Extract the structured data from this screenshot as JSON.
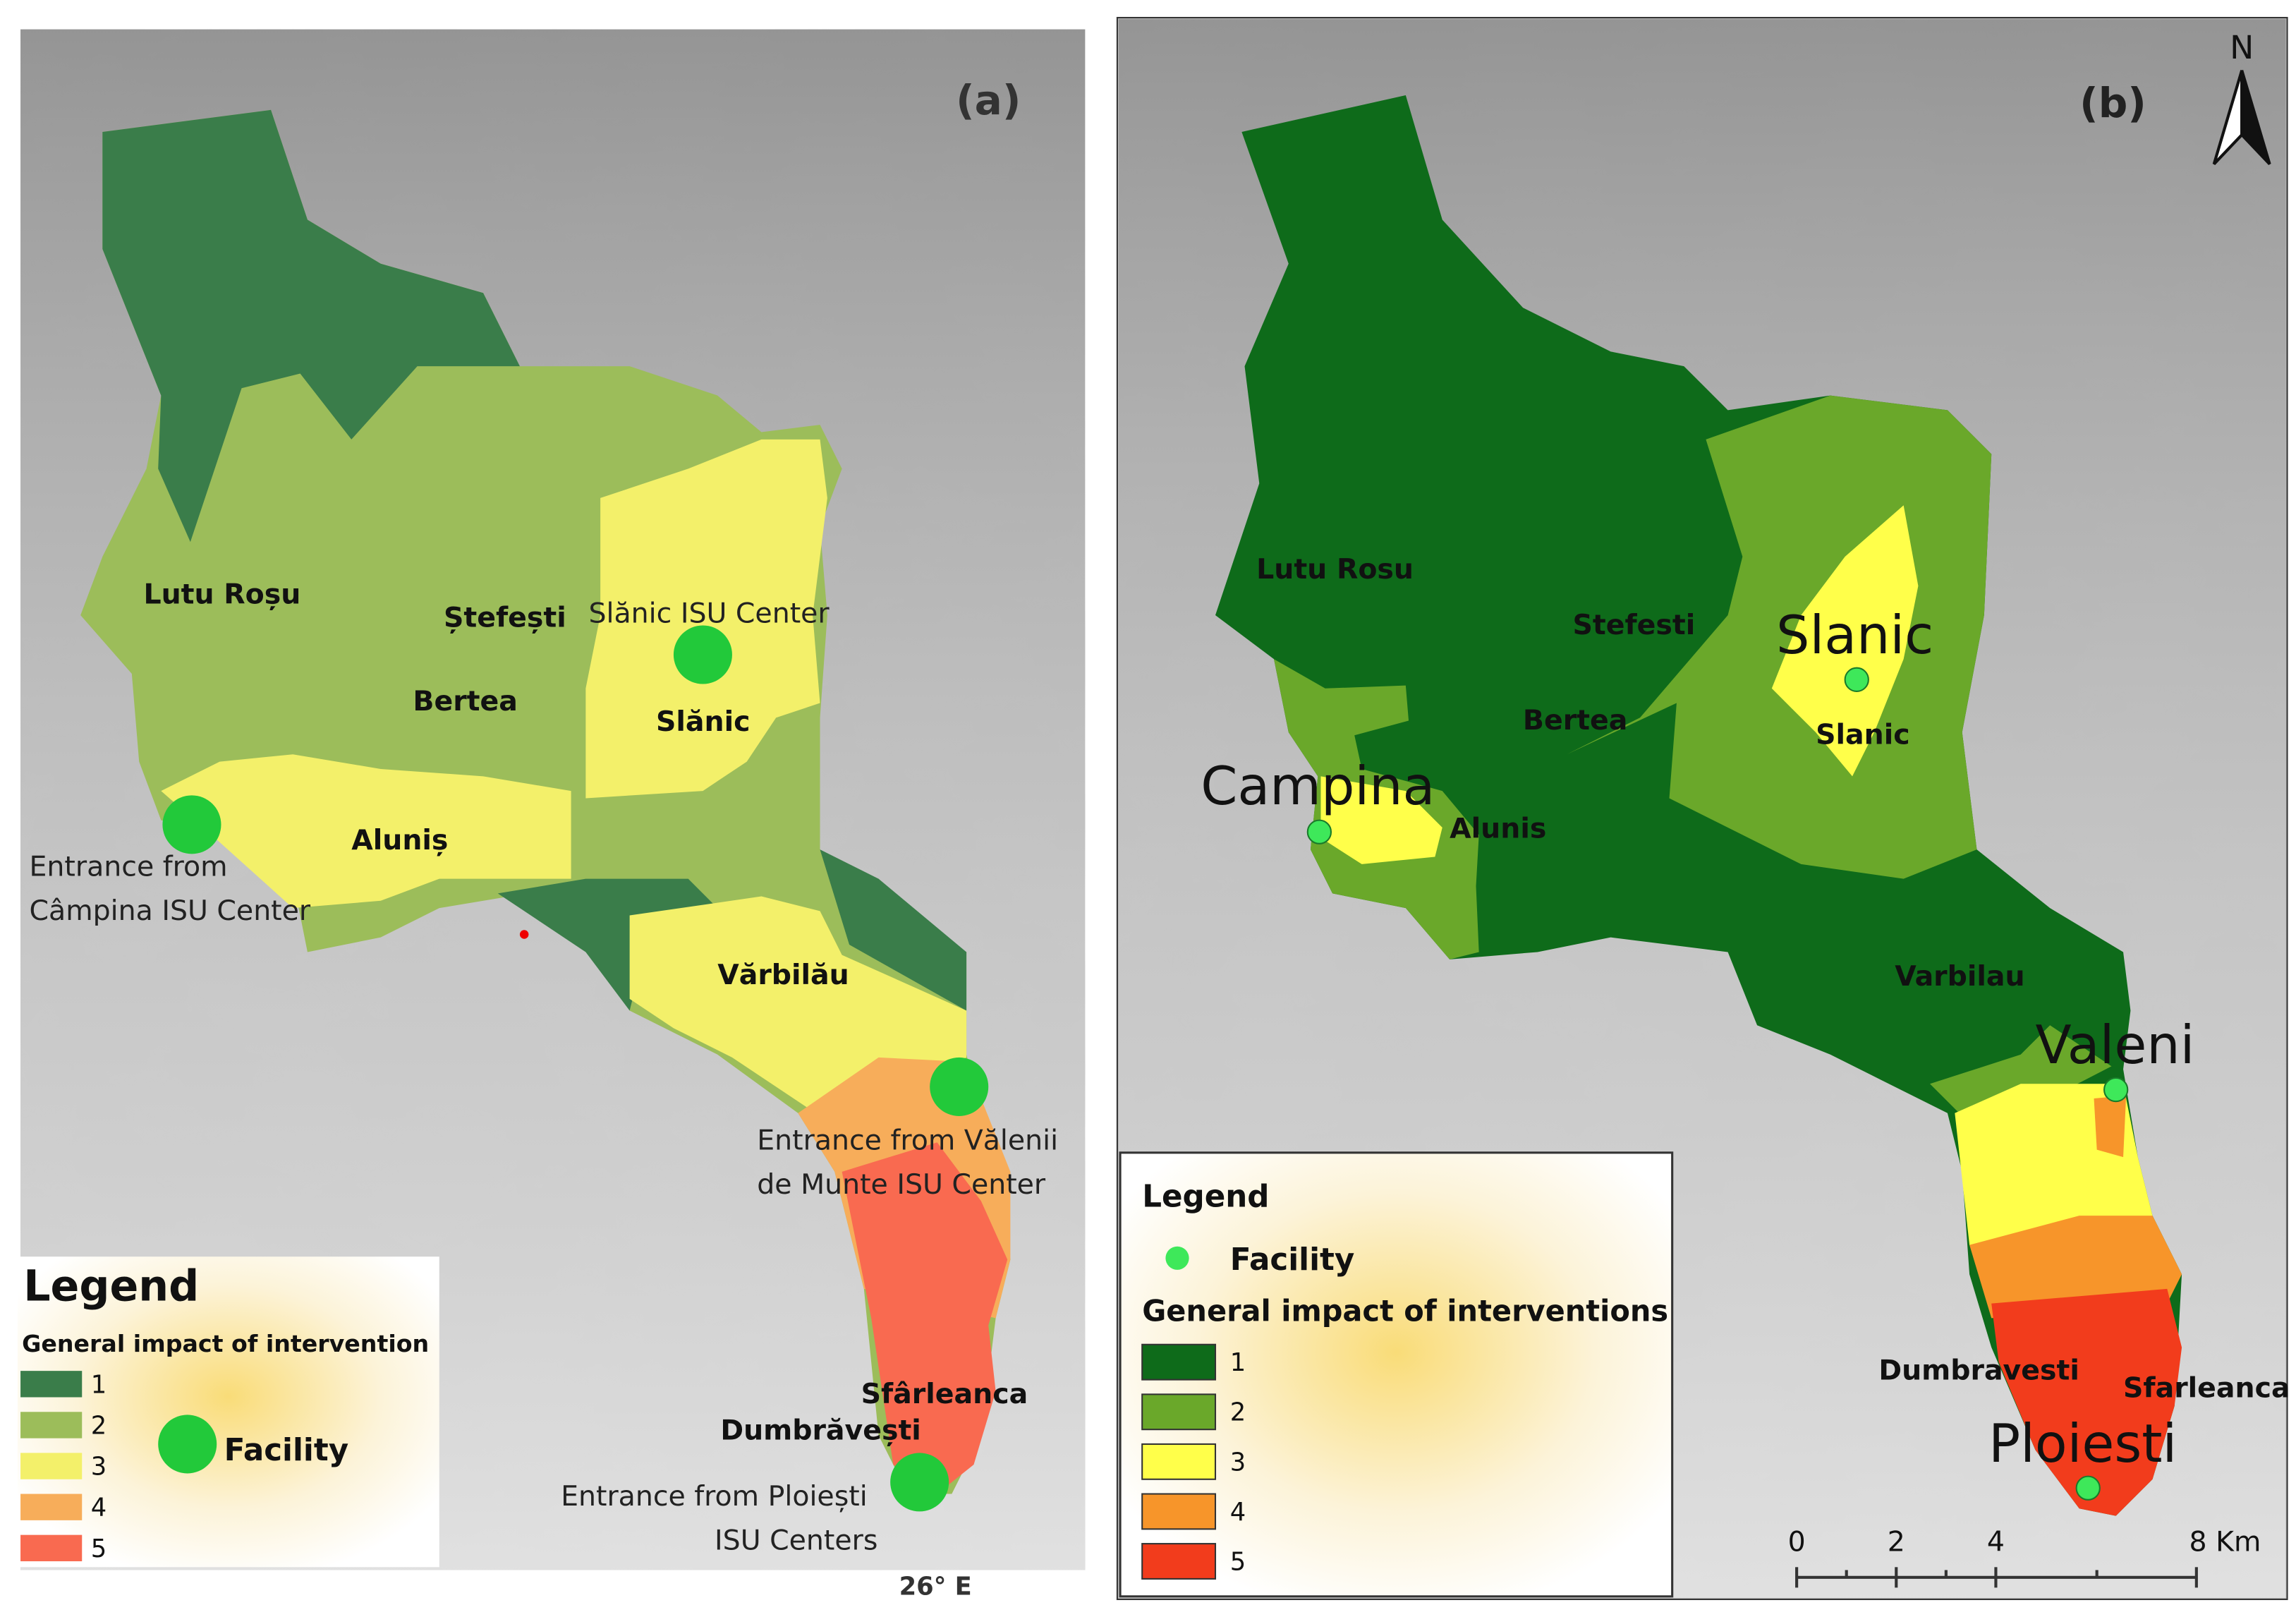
{
  "panel_a": {
    "tag": "(a)",
    "places": [
      "Lutu Roșu",
      "Ștefești",
      "Bertea",
      "Slănic",
      "Aluniș",
      "Vărbilău",
      "Sfârleanca",
      "Dumbrăvești"
    ],
    "annotations": [
      "Slănic ISU Center",
      "Entrance from",
      "Câmpina ISU Center",
      "Entrance from Vălenii",
      "de Munte ISU Center",
      "Entrance from Ploiești",
      "ISU Centers"
    ],
    "longitude": "26° E",
    "legend": {
      "title": "Legend",
      "subtitle": "General impact of intervention",
      "classes": [
        "1",
        "2",
        "3",
        "4",
        "5"
      ],
      "facility": "Facility"
    }
  },
  "panel_b": {
    "tag": "(b)",
    "north": "N",
    "places": [
      "Lutu Rosu",
      "Stefesti",
      "Bertea",
      "Slanic",
      "Alunis",
      "Varbilau",
      "Dumbravesti",
      "Sfarleanca"
    ],
    "towns": [
      "Slanic",
      "Campina",
      "Valeni",
      "Ploiesti"
    ],
    "legend": {
      "title": "Legend",
      "facility": "Facility",
      "subtitle": "General impact of interventions",
      "classes": [
        "1",
        "2",
        "3",
        "4",
        "5"
      ]
    },
    "scale": [
      "0",
      "2",
      "4",
      "8 Km"
    ]
  }
}
